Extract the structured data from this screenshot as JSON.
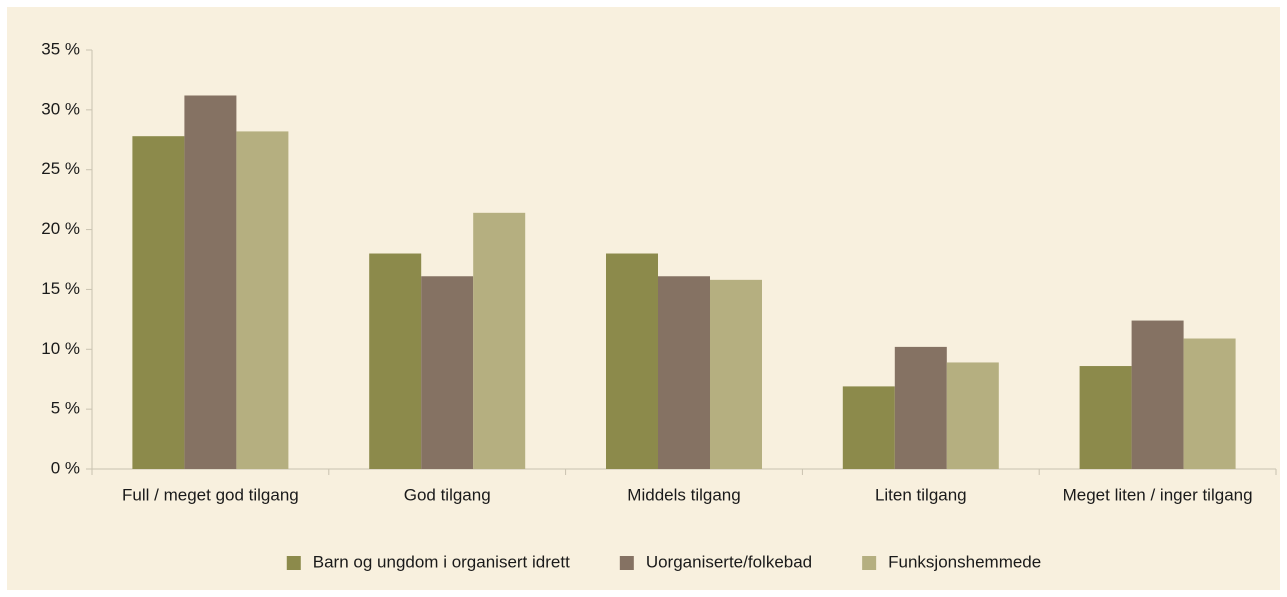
{
  "chart_data": {
    "type": "bar",
    "categories": [
      "Full / meget god tilgang",
      "God tilgang",
      "Middels tilgang",
      "Liten tilgang",
      "Meget liten / inger tilgang"
    ],
    "series": [
      {
        "name": "Barn og ungdom i organisert idrett",
        "color": "#8c8a4b",
        "values": [
          27.8,
          18.0,
          18.0,
          6.9,
          8.6
        ]
      },
      {
        "name": "Uorganiserte/folkebad",
        "color": "#857263",
        "values": [
          31.2,
          16.1,
          16.1,
          10.2,
          12.4
        ]
      },
      {
        "name": "Funksjonshemmede",
        "color": "#b5af80",
        "values": [
          28.2,
          21.4,
          15.8,
          8.9,
          10.9
        ]
      }
    ],
    "ylim": [
      0,
      35
    ],
    "yticks": [
      {
        "value": 0,
        "label": "0 %"
      },
      {
        "value": 5,
        "label": "5 %"
      },
      {
        "value": 10,
        "label": "10 %"
      },
      {
        "value": 15,
        "label": "15 %"
      },
      {
        "value": 20,
        "label": "20 %"
      },
      {
        "value": 25,
        "label": "25 %"
      },
      {
        "value": 30,
        "label": "30 %"
      },
      {
        "value": 35,
        "label": "35 %"
      }
    ],
    "legend": "bottom"
  }
}
